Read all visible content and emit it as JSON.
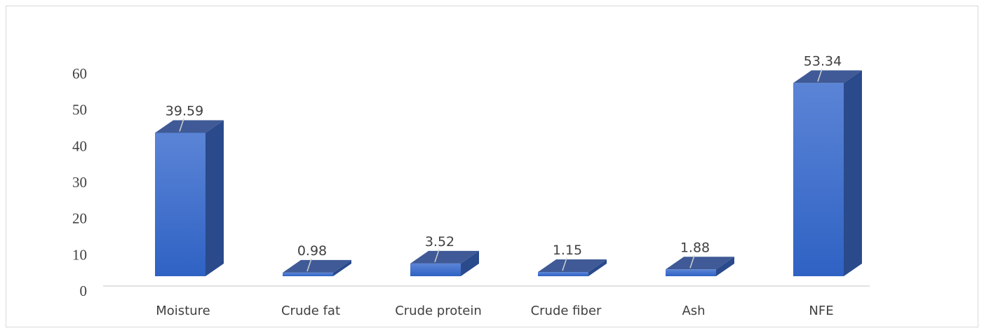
{
  "chart_data": {
    "type": "bar",
    "categories": [
      "Moisture",
      "Crude fat",
      "Crude protein",
      "Crude fiber",
      "Ash",
      "NFE"
    ],
    "values": [
      39.59,
      0.98,
      3.52,
      1.15,
      1.88,
      53.34
    ],
    "data_labels": [
      "39.59",
      "0.98",
      "3.52",
      "1.15",
      "1.88",
      "53.34"
    ],
    "title": "",
    "xlabel": "",
    "ylabel": "",
    "ylim": [
      0,
      60
    ],
    "yticks": [
      "0",
      "10",
      "20",
      "30",
      "40",
      "50",
      "60"
    ],
    "grid": false,
    "legend": "none",
    "style": "3d-column",
    "colors": {
      "front_top": "#5b84d6",
      "front_bottom": "#2f62c4",
      "top_face": "#3f5a96",
      "side_face": "#2a4a8c",
      "axis": "#d9d9d9",
      "leader": "#d0d0d0",
      "text": "#404040"
    }
  }
}
